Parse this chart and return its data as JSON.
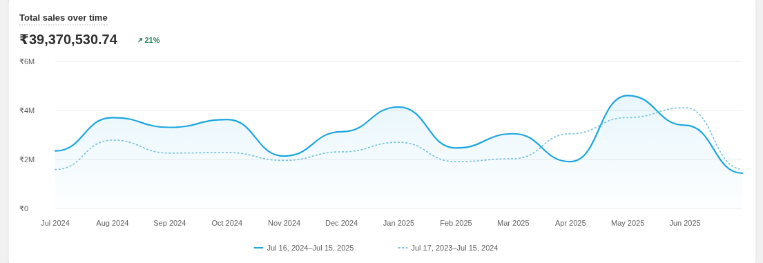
{
  "chart_data": {
    "type": "line",
    "title": "Total sales over time",
    "subtitle": "₹39,370,530.74",
    "annotations": [
      "21%"
    ],
    "categories": [
      "Jul 2024",
      "Aug 2024",
      "Sep 2024",
      "Oct 2024",
      "Nov 2024",
      "Dec 2024",
      "Jan 2025",
      "Feb 2025",
      "Mar 2025",
      "Apr 2025",
      "May 2025",
      "Jun 2025",
      null
    ],
    "series": [
      {
        "name": "Jul 16, 2024–Jul 15, 2025",
        "type": "area",
        "color": "#1ba6df",
        "line_style": "solid",
        "values": [
          2.35,
          3.71,
          3.31,
          3.63,
          2.14,
          3.13,
          4.14,
          2.47,
          3.05,
          1.91,
          4.61,
          3.4,
          1.44
        ]
      },
      {
        "name": "Jul 17, 2023–Jul 15, 2024",
        "type": "line",
        "color": "#7cc4dc",
        "line_style": "dotted",
        "values": [
          1.59,
          2.79,
          2.26,
          2.28,
          1.96,
          2.31,
          2.7,
          1.91,
          2.03,
          3.05,
          3.71,
          4.11,
          1.61
        ]
      }
    ],
    "ylim": [
      0,
      6
    ],
    "yticks": [
      {
        "value": 0,
        "label": "₹0"
      },
      {
        "value": 2,
        "label": "₹2M"
      },
      {
        "value": 4,
        "label": "₹4M"
      },
      {
        "value": 6,
        "label": "₹6M"
      }
    ],
    "grid": "y",
    "legend": "bottom",
    "marker": "none"
  }
}
